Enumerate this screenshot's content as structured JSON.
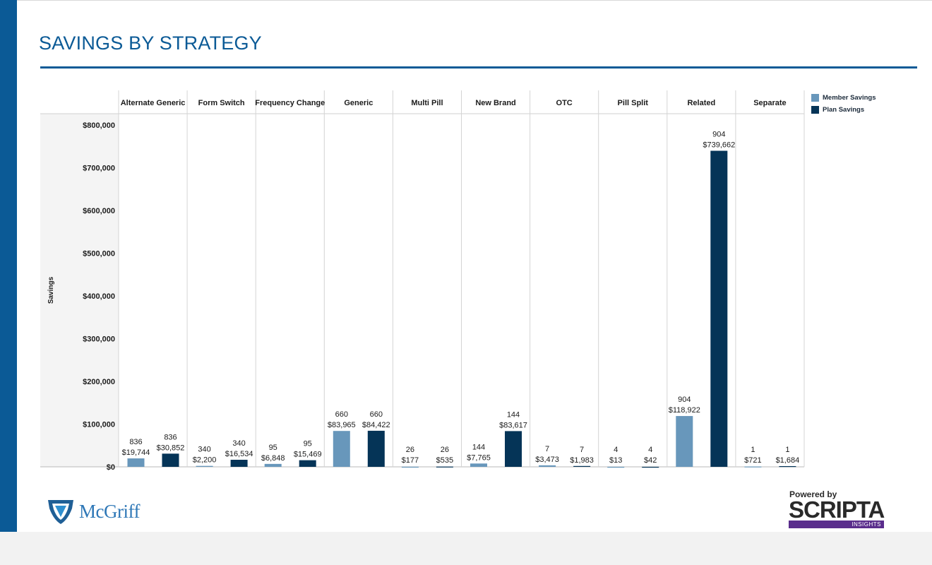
{
  "page": {
    "title": "SAVINGS BY STRATEGY"
  },
  "colors": {
    "brand": "#0b5a96",
    "member": "#6897bb",
    "plan": "#053457"
  },
  "logos": {
    "mcgriff": "McGriff",
    "scripta_powered": "Powered by",
    "scripta_word": "SCRIPTA",
    "scripta_insights": "INSIGHTS"
  },
  "chart_data": {
    "type": "bar",
    "ylabel": "Savings",
    "ylim": [
      0,
      800000
    ],
    "yticks": [
      "$0",
      "$100,000",
      "$200,000",
      "$300,000",
      "$400,000",
      "$500,000",
      "$600,000",
      "$700,000",
      "$800,000"
    ],
    "legend_position": "top-right",
    "legend": [
      "Member Savings",
      "Plan Savings"
    ],
    "categories": [
      "Alternate Generic",
      "Form Switch",
      "Frequency Change",
      "Generic",
      "Multi Pill",
      "New Brand",
      "OTC",
      "Pill Split",
      "Related",
      "Separate"
    ],
    "series": [
      {
        "name": "Member Savings",
        "values": [
          19744,
          2200,
          6848,
          83965,
          177,
          7765,
          3473,
          13,
          118922,
          721
        ],
        "counts": [
          "836",
          "340",
          "95",
          "660",
          "26",
          "144",
          "7",
          "4",
          "904",
          "1"
        ],
        "labels": [
          "$19,744",
          "$2,200",
          "$6,848",
          "$83,965",
          "$177",
          "$7,765",
          "$3,473",
          "$13",
          "$118,922",
          "$721"
        ]
      },
      {
        "name": "Plan Savings",
        "values": [
          30852,
          16534,
          15469,
          84422,
          535,
          83617,
          1983,
          42,
          739662,
          1684
        ],
        "counts": [
          "836",
          "340",
          "95",
          "660",
          "26",
          "144",
          "7",
          "4",
          "904",
          "1"
        ],
        "labels": [
          "$30,852",
          "$16,534",
          "$15,469",
          "$84,422",
          "$535",
          "$83,617",
          "$1,983",
          "$42",
          "$739,662",
          "$1,684"
        ]
      }
    ]
  }
}
